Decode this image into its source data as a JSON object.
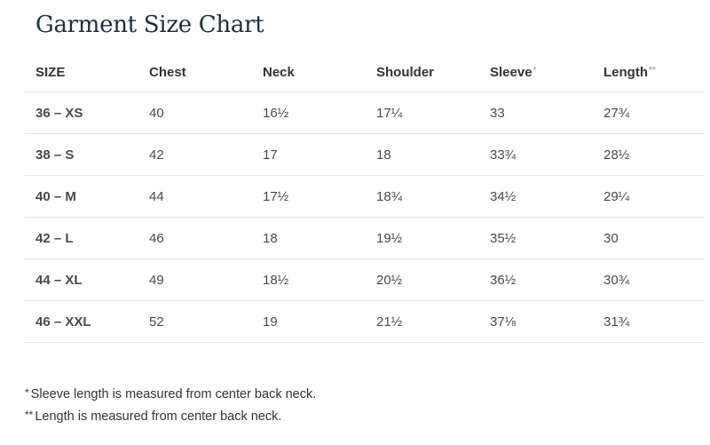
{
  "title": "Garment Size Chart",
  "columns": [
    "SIZE",
    "Chest",
    "Neck",
    "Shoulder",
    "Sleeve",
    "Length"
  ],
  "column_markers": [
    "",
    "",
    "",
    "",
    "*",
    "**"
  ],
  "rows": [
    [
      "36 – XS",
      "40",
      "16½",
      "17¼",
      "33",
      "27¾"
    ],
    [
      "38 – S",
      "42",
      "17",
      "18",
      "33¾",
      "28½"
    ],
    [
      "40 – M",
      "44",
      "17½",
      "18¾",
      "34½",
      "29¼"
    ],
    [
      "42 – L",
      "46",
      "18",
      "19½",
      "35½",
      "30"
    ],
    [
      "44 – XL",
      "49",
      "18½",
      "20½",
      "36½",
      "30¾"
    ],
    [
      "46 – XXL",
      "52",
      "19",
      "21½",
      "37⅛",
      "31¾"
    ]
  ],
  "footnotes": [
    {
      "marker": "*",
      "text": "Sleeve length is measured from center back neck."
    },
    {
      "marker": "**",
      "text": "Length is measured from center back neck."
    }
  ]
}
